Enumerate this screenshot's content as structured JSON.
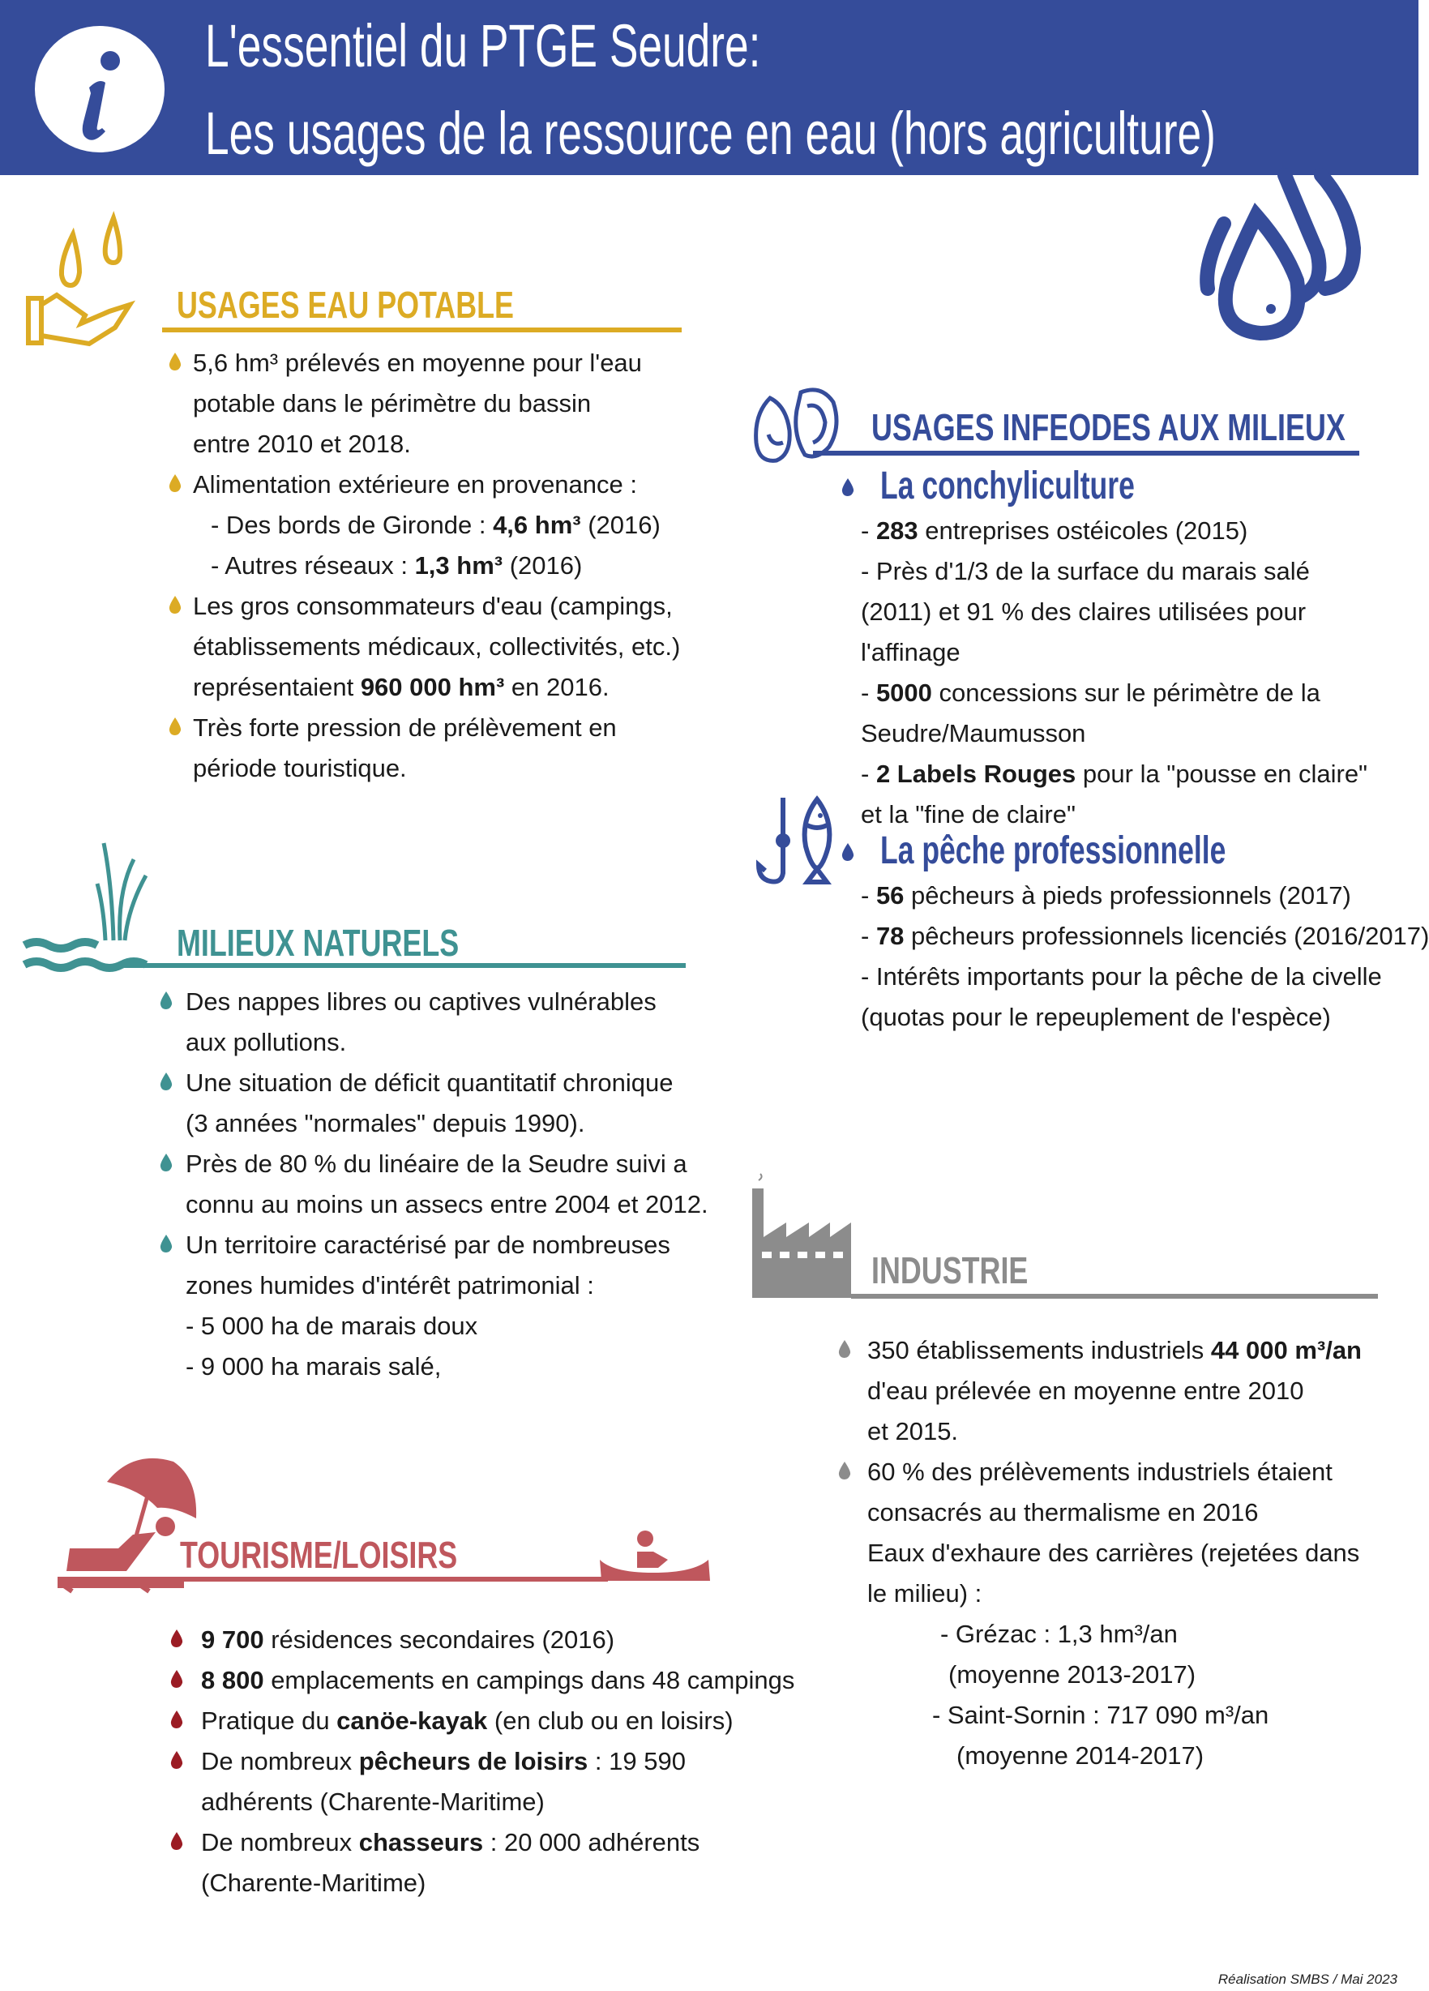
{
  "header": {
    "title_line1": "L'essentiel du PTGE Seudre:",
    "title_line2": "Les usages de la ressource en eau (hors agriculture)",
    "info_icon": "info-icon"
  },
  "colors": {
    "header_blue": "#354c9a",
    "potable_gold": "#dcab24",
    "milieux_teal": "#3f9292",
    "tourisme_red": "#bf575d",
    "bullet_red": "#9b1c24",
    "industrie_gray": "#8c8c8c"
  },
  "potable": {
    "title": "USAGES EAU POTABLE",
    "lines": [
      {
        "drop": true,
        "x": 0,
        "seg": [
          "5,6 hm³ prélevés en moyenne pour l'eau"
        ]
      },
      {
        "seg": [
          "potable dans le périmètre du bassin"
        ]
      },
      {
        "seg": [
          "entre 2010 et 2018."
        ]
      },
      {
        "drop": true,
        "seg": [
          "Alimentation extérieure en  provenance :"
        ]
      },
      {
        "indent": 1,
        "seg": [
          "- Des bords de Gironde : ",
          {
            "b": "4,6 hm³"
          },
          " (2016)"
        ]
      },
      {
        "indent": 1,
        "seg": [
          "- Autres réseaux : ",
          {
            "b": "1,3 hm³"
          },
          " (2016)"
        ]
      },
      {
        "drop": true,
        "seg": [
          "Les gros consommateurs d'eau (campings,"
        ]
      },
      {
        "seg": [
          "établissements médicaux, collectivités, etc.)"
        ]
      },
      {
        "seg": [
          "représentaient ",
          {
            "b": "960 000 hm³"
          },
          " en 2016."
        ]
      },
      {
        "drop": true,
        "seg": [
          "Très forte pression de prélèvement en"
        ]
      },
      {
        "seg": [
          "période touristique."
        ]
      }
    ]
  },
  "milieux_infeodes": {
    "title": "USAGES INFEODES AUX MILIEUX",
    "conchyliculture": {
      "title": "La conchyliculture",
      "lines": [
        {
          "seg": [
            "- ",
            {
              "b": "283"
            },
            " entreprises ostéicoles (2015)"
          ]
        },
        {
          "seg": [
            "- Près d'1/3 de la surface du marais salé"
          ]
        },
        {
          "seg": [
            "(2011) et 91 % des claires utilisées pour"
          ]
        },
        {
          "seg": [
            "l'affinage"
          ]
        },
        {
          "seg": [
            "- ",
            {
              "b": "5000"
            },
            " concessions sur le périmètre de la"
          ]
        },
        {
          "seg": [
            "Seudre/Maumusson"
          ]
        },
        {
          "seg": [
            "- ",
            {
              "b": "2 Labels Rouges"
            },
            " pour la \"pousse en claire\""
          ]
        },
        {
          "seg": [
            "et la \"fine de claire\""
          ]
        }
      ]
    },
    "peche": {
      "title": "La pêche professionnelle",
      "lines": [
        {
          "seg": [
            "- ",
            {
              "b": "56"
            },
            " pêcheurs à pieds professionnels (2017)"
          ]
        },
        {
          "seg": [
            "- ",
            {
              "b": "78"
            },
            " pêcheurs professionnels licenciés (2016/2017)"
          ]
        },
        {
          "seg": [
            "- Intérêts importants pour la pêche de la civelle"
          ]
        },
        {
          "seg": [
            "(quotas pour le repeuplement de l'espèce)"
          ]
        }
      ]
    }
  },
  "milieux_naturels": {
    "title": "MILIEUX NATURELS",
    "lines": [
      {
        "drop": true,
        "seg": [
          "Des nappes libres ou captives vulnérables"
        ]
      },
      {
        "seg": [
          "aux pollutions."
        ]
      },
      {
        "drop": true,
        "seg": [
          "Une situation de déficit quantitatif chronique"
        ]
      },
      {
        "seg": [
          "(3 années \"normales\" depuis 1990)."
        ]
      },
      {
        "drop": true,
        "seg": [
          "Près de 80 % du linéaire de la Seudre suivi a"
        ]
      },
      {
        "seg": [
          "connu au moins un assecs entre 2004 et 2012."
        ]
      },
      {
        "drop": true,
        "seg": [
          "Un territoire caractérisé par de nombreuses"
        ]
      },
      {
        "seg": [
          "zones humides d'intérêt patrimonial :"
        ]
      },
      {
        "seg": [
          "- 5 000 ha de marais doux"
        ]
      },
      {
        "seg": [
          "- 9 000 ha marais salé,"
        ]
      }
    ]
  },
  "industrie": {
    "title": "INDUSTRIE",
    "lines": [
      {
        "drop": true,
        "seg": [
          "350 établissements industriels ",
          {
            "b": "44 000 m³/an"
          }
        ]
      },
      {
        "seg": [
          "d'eau prélevée en moyenne entre 2010"
        ]
      },
      {
        "seg": [
          "et 2015."
        ]
      },
      {
        "drop": true,
        "seg": [
          "60 % des prélèvements industriels étaient"
        ]
      },
      {
        "seg": [
          "consacrés au thermalisme en 2016"
        ]
      },
      {
        "seg": [
          "Eaux d'exhaure des carrières (rejetées dans"
        ]
      },
      {
        "seg": [
          "le milieu) :"
        ]
      },
      {
        "indent": 3,
        "seg": [
          "- Grézac : 1,3 hm³/an"
        ]
      },
      {
        "indent": 4,
        "seg": [
          "(moyenne 2013-2017)"
        ]
      },
      {
        "indent": 2,
        "seg": [
          "- Saint-Sornin : 717 090 m³/an"
        ]
      },
      {
        "indent": 5,
        "seg": [
          "(moyenne 2014-2017)"
        ]
      }
    ]
  },
  "tourisme": {
    "title": "TOURISME/LOISIRS",
    "lines": [
      {
        "drop": true,
        "seg": [
          {
            "b": "9 700"
          },
          " résidences secondaires (2016)"
        ]
      },
      {
        "drop": true,
        "seg": [
          {
            "b": "8 800"
          },
          " emplacements en campings dans 48 campings"
        ]
      },
      {
        "drop": true,
        "seg": [
          "Pratique du ",
          {
            "b": "canöe-kayak"
          },
          " (en club ou en loisirs)"
        ]
      },
      {
        "drop": true,
        "seg": [
          "De nombreux ",
          {
            "b": "pêcheurs de loisirs"
          },
          " : 19 590"
        ]
      },
      {
        "seg": [
          "adhérents (Charente-Maritime)"
        ]
      },
      {
        "drop": true,
        "seg": [
          "De nombreux ",
          {
            "b": "chasseurs"
          },
          " : 20 000 adhérents"
        ]
      },
      {
        "seg": [
          "(Charente-Maritime)"
        ]
      }
    ]
  },
  "footer": {
    "credit": "Réalisation SMBS / Mai 2023"
  }
}
